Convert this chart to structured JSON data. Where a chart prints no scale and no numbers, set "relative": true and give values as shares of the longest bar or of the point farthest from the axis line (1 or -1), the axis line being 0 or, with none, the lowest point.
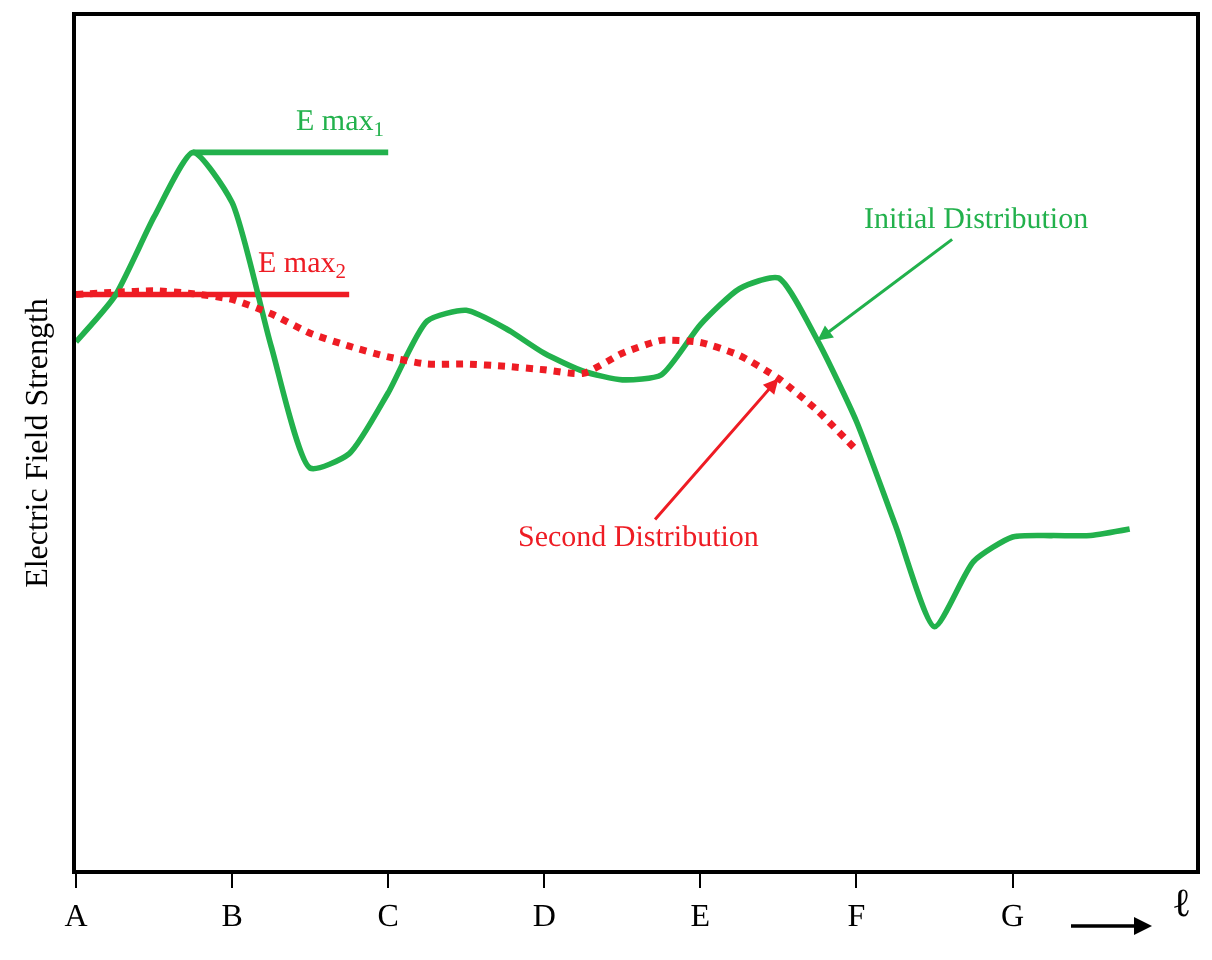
{
  "chart_data": {
    "type": "line",
    "relative": true,
    "ylabel": "Electric Field Strength",
    "xlabel": "ℓ",
    "categories": [
      "A",
      null,
      null,
      null,
      "B",
      null,
      null,
      null,
      "C",
      null,
      null,
      null,
      "D",
      null,
      null,
      null,
      "E",
      null,
      null,
      null,
      "F",
      null,
      null,
      null,
      "G",
      null,
      null,
      null,
      null
    ],
    "legend": false,
    "marker": "none",
    "series": [
      {
        "name": "E max$_{1}$",
        "color": "#22b14c",
        "line_style": "solid",
        "values": [
          null,
          null,
          null,
          1.0,
          1.0,
          1.0,
          1.0,
          1.0,
          1.0,
          null,
          null,
          null,
          null,
          null,
          null,
          null,
          null,
          null,
          null,
          null,
          null,
          null,
          null,
          null,
          null,
          null,
          null,
          null,
          null
        ]
      },
      {
        "name": "E max$_{2}$",
        "color": "#ee1c24",
        "line_style": "solid",
        "values": [
          0.802,
          0.802,
          0.802,
          0.802,
          0.802,
          0.802,
          0.802,
          0.802,
          null,
          null,
          null,
          null,
          null,
          null,
          null,
          null,
          null,
          null,
          null,
          null,
          null,
          null,
          null,
          null,
          null,
          null,
          null,
          null,
          null
        ]
      },
      {
        "color": "#22b14c",
        "line_style": "solid",
        "values": [
          0.736,
          0.8,
          0.91,
          1.0,
          0.93,
          0.73,
          0.56,
          0.58,
          0.665,
          0.765,
          0.78,
          0.755,
          0.72,
          0.695,
          0.683,
          0.69,
          0.76,
          0.81,
          0.825,
          0.738,
          0.625,
          0.48,
          0.339,
          0.43,
          0.464,
          0.466,
          0.466,
          0.475,
          null
        ]
      },
      {
        "color": "#ee1c24",
        "line_style": "dotted",
        "values": [
          0.802,
          0.805,
          0.807,
          0.803,
          0.795,
          0.775,
          0.748,
          0.73,
          0.715,
          0.705,
          0.705,
          0.702,
          0.697,
          0.692,
          0.72,
          0.738,
          0.735,
          0.717,
          0.685,
          0.64,
          0.585,
          null,
          null,
          null,
          null,
          null,
          null,
          null,
          null
        ]
      }
    ],
    "annotations": [
      "Initial Distribution",
      "Second Distribution"
    ]
  }
}
